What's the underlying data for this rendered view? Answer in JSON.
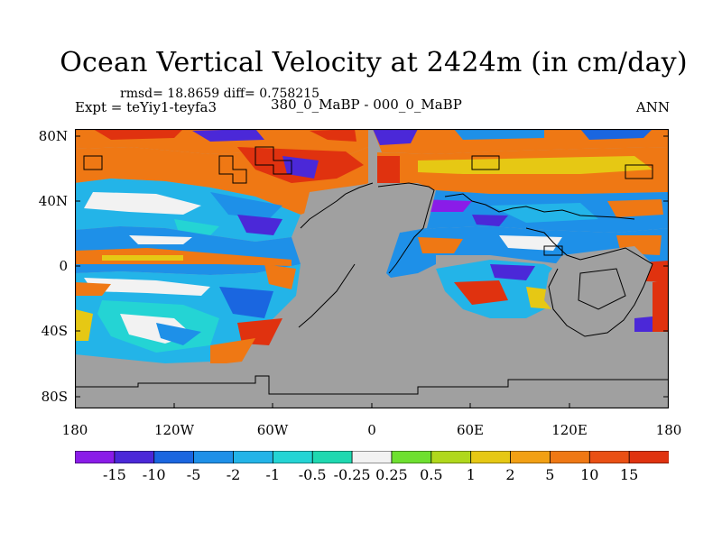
{
  "title": "Ocean Vertical Velocity at 2424m (in cm/day)",
  "stats": "rmsd= 18.8659  diff= 0.758215",
  "expt": "Expt = teYiy1-teyfa3",
  "center_label": "380_0_MaBP - 000_0_MaBP",
  "season": "ANN",
  "y_ticks": [
    "80N",
    "40N",
    "0",
    "40S",
    "80S"
  ],
  "x_ticks": [
    "180",
    "120W",
    "60W",
    "0",
    "60E",
    "120E",
    "180"
  ],
  "colorbar": {
    "labels": [
      "-15",
      "-10",
      "-5",
      "-2",
      "-1",
      "-0.5",
      "-0.25",
      "0.25",
      "0.5",
      "1",
      "2",
      "5",
      "10",
      "15"
    ],
    "colors": [
      "#8a1ce8",
      "#4b28d8",
      "#1a66e0",
      "#1e90e8",
      "#23b4e8",
      "#24d4d4",
      "#1fd8b0",
      "#f2f2f2",
      "#6ee030",
      "#b0d81c",
      "#e6c814",
      "#f2a014",
      "#ef7814",
      "#ea5014",
      "#e0320f"
    ]
  },
  "colors": {
    "land": "#a0a0a0",
    "background": "#ffffff"
  }
}
